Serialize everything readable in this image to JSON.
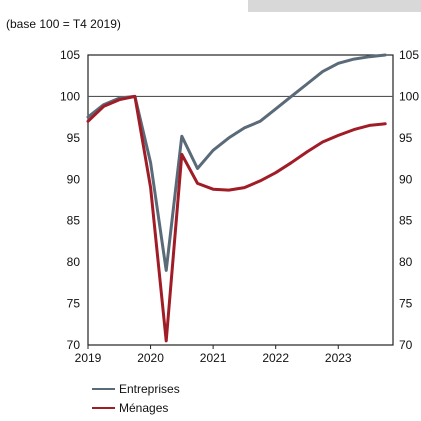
{
  "chart_data": {
    "type": "line",
    "subtitle": "(base 100 = T4 2019)",
    "x_ticks": [
      "2019",
      "2020",
      "2021",
      "2022",
      "2023"
    ],
    "y_ticks": [
      70,
      75,
      80,
      85,
      90,
      95,
      100,
      105
    ],
    "ylim": [
      70,
      105
    ],
    "reference_line": 100,
    "series": [
      {
        "name": "Entreprises",
        "color": "#5a6a78",
        "x": [
          "2019-Q1",
          "2019-Q2",
          "2019-Q3",
          "2019-Q4",
          "2020-Q1",
          "2020-Q2",
          "2020-Q3",
          "2020-Q4",
          "2021-Q1",
          "2021-Q2",
          "2021-Q3",
          "2021-Q4",
          "2022-Q1",
          "2022-Q2",
          "2022-Q3",
          "2022-Q4",
          "2023-Q1",
          "2023-Q2",
          "2023-Q3",
          "2023-Q4"
        ],
        "values": [
          97.5,
          99.0,
          99.8,
          100.0,
          92.0,
          79.0,
          95.2,
          91.3,
          93.5,
          95.0,
          96.2,
          97.0,
          98.5,
          100.0,
          101.5,
          103.0,
          104.0,
          104.5,
          104.8,
          105.0
        ]
      },
      {
        "name": "Ménages",
        "color": "#a01c26",
        "x": [
          "2019-Q1",
          "2019-Q2",
          "2019-Q3",
          "2019-Q4",
          "2020-Q1",
          "2020-Q2",
          "2020-Q3",
          "2020-Q4",
          "2021-Q1",
          "2021-Q2",
          "2021-Q3",
          "2021-Q4",
          "2022-Q1",
          "2022-Q2",
          "2022-Q3",
          "2022-Q4",
          "2023-Q1",
          "2023-Q2",
          "2023-Q3",
          "2023-Q4"
        ],
        "values": [
          97.0,
          98.8,
          99.6,
          100.0,
          89.0,
          70.5,
          93.0,
          89.5,
          88.8,
          88.7,
          89.0,
          89.8,
          90.8,
          92.0,
          93.3,
          94.5,
          95.3,
          96.0,
          96.5,
          96.7
        ]
      }
    ],
    "legend_position": "bottom-left"
  }
}
